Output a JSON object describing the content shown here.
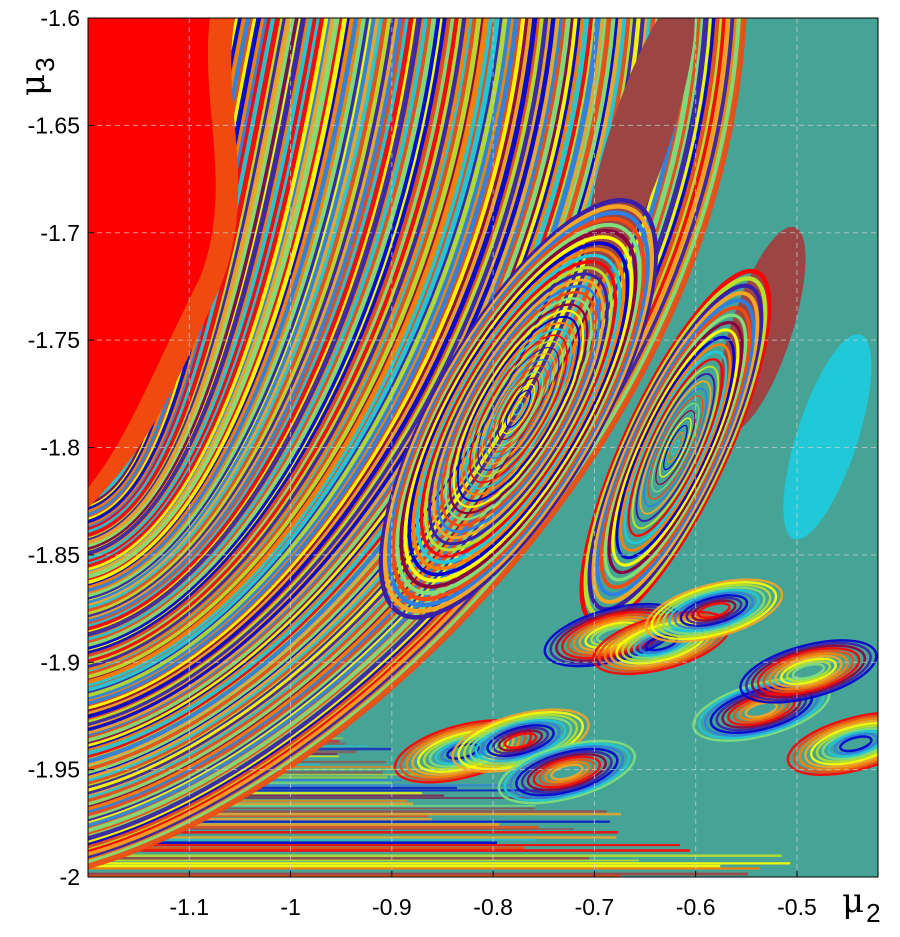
{
  "chart_data": {
    "type": "heatmap",
    "title": "",
    "xlabel": {
      "symbol": "μ",
      "subscript": "2"
    },
    "ylabel": {
      "symbol": "μ",
      "subscript": "3"
    },
    "xlim": [
      -1.2,
      -0.42
    ],
    "ylim": [
      -2.0,
      -1.6
    ],
    "x_ticks": [
      {
        "value": -1.1,
        "label": "-1.1"
      },
      {
        "value": -1.0,
        "label": "-1"
      },
      {
        "value": -0.9,
        "label": "-0.9"
      },
      {
        "value": -0.8,
        "label": "-0.8"
      },
      {
        "value": -0.7,
        "label": "-0.7"
      },
      {
        "value": -0.6,
        "label": "-0.6"
      },
      {
        "value": -0.5,
        "label": "-0.5"
      }
    ],
    "y_ticks": [
      {
        "value": -1.6,
        "label": "-1.6"
      },
      {
        "value": -1.65,
        "label": "-1.65"
      },
      {
        "value": -1.7,
        "label": "-1.7"
      },
      {
        "value": -1.75,
        "label": "-1.75"
      },
      {
        "value": -1.8,
        "label": "-1.8"
      },
      {
        "value": -1.85,
        "label": "-1.85"
      },
      {
        "value": -1.9,
        "label": "-1.9"
      },
      {
        "value": -1.95,
        "label": "-1.95"
      },
      {
        "value": -2.0,
        "label": "-2"
      }
    ],
    "grid": true,
    "colors": {
      "background": "#46a497",
      "palette": [
        "#ff0000",
        "#f04a10",
        "#ff8000",
        "#f5a623",
        "#ffff00",
        "#b8e02a",
        "#7fe07a",
        "#20c8d8",
        "#2f7fe0",
        "#0000d0",
        "#3a1fa8",
        "#8b0040",
        "#9b4545",
        "#46a497"
      ]
    },
    "regions": [
      {
        "name": "red-plateau",
        "cx": -1.17,
        "cy": -1.7,
        "rx": 0.11,
        "ry": 0.15,
        "color": "#ff0000"
      },
      {
        "name": "spiral-center-1",
        "cx": -0.775,
        "cy": -1.782,
        "rx": 0.08,
        "ry": 0.11,
        "color": "#2f7fe0"
      },
      {
        "name": "spiral-center-2",
        "cx": -0.62,
        "cy": -1.8,
        "rx": 0.05,
        "ry": 0.09,
        "color": "#ffff00"
      },
      {
        "name": "brown-lobe-1",
        "cx": -0.655,
        "cy": -1.655,
        "rx": 0.03,
        "ry": 0.07,
        "color": "#9b4545"
      },
      {
        "name": "brown-lobe-2",
        "cx": -0.535,
        "cy": -1.745,
        "rx": 0.03,
        "ry": 0.05,
        "color": "#9b4545"
      },
      {
        "name": "cyan-lobe",
        "cx": -0.47,
        "cy": -1.795,
        "rx": 0.03,
        "ry": 0.05,
        "color": "#20c8d8"
      }
    ]
  }
}
